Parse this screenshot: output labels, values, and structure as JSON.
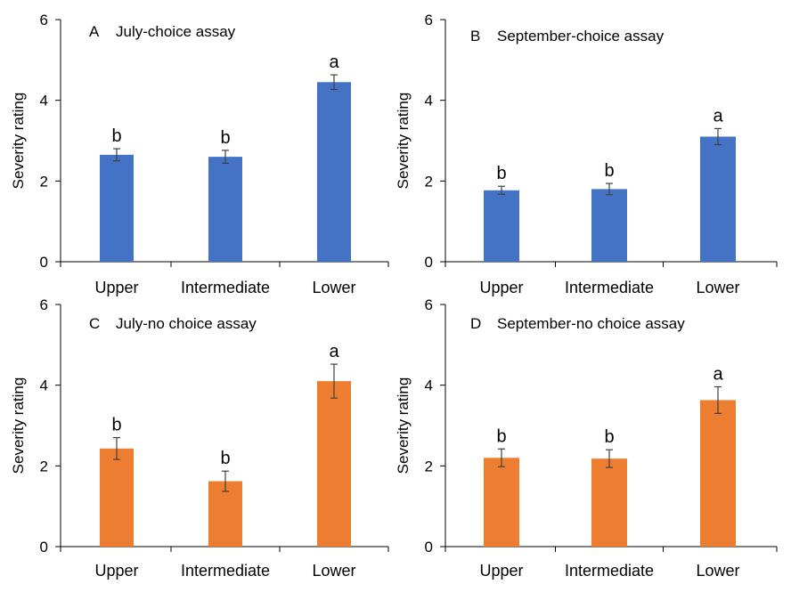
{
  "figure": {
    "panels": [
      {
        "letter": "A",
        "title": "July-choice assay"
      },
      {
        "letter": "B",
        "title": "September-choice assay"
      },
      {
        "letter": "C",
        "title": "July-no choice assay"
      },
      {
        "letter": "D",
        "title": "September-no choice assay"
      }
    ]
  },
  "chart_data": [
    {
      "type": "bar",
      "title": "A    July-choice assay",
      "xlabel": "",
      "ylabel": "Severity rating",
      "categories": [
        "Upper",
        "Intermediate",
        "Lower"
      ],
      "values": [
        2.65,
        2.6,
        4.45
      ],
      "error": [
        0.15,
        0.16,
        0.18
      ],
      "labels": [
        "b",
        "b",
        "a"
      ],
      "ylim": [
        0,
        6
      ],
      "yticks": [
        0,
        2,
        4,
        6
      ],
      "color": "#4472C4",
      "grid": false,
      "legend": "none"
    },
    {
      "type": "bar",
      "title": "B    September-choice assay",
      "xlabel": "",
      "ylabel": "Severity rating",
      "categories": [
        "Upper",
        "Intermediate",
        "Lower"
      ],
      "values": [
        1.77,
        1.8,
        3.1
      ],
      "error": [
        0.1,
        0.14,
        0.2
      ],
      "labels": [
        "b",
        "b",
        "a"
      ],
      "ylim": [
        0,
        6
      ],
      "yticks": [
        0,
        2,
        4,
        6
      ],
      "color": "#4472C4",
      "grid": false,
      "legend": "none"
    },
    {
      "type": "bar",
      "title": "C    July-no choice assay",
      "xlabel": "",
      "ylabel": "Severity rating",
      "categories": [
        "Upper",
        "Intermediate",
        "Lower"
      ],
      "values": [
        2.43,
        1.62,
        4.1
      ],
      "error": [
        0.27,
        0.25,
        0.42
      ],
      "labels": [
        "b",
        "b",
        "a"
      ],
      "ylim": [
        0,
        6
      ],
      "yticks": [
        0,
        2,
        4,
        6
      ],
      "color": "#ED7D31",
      "grid": false,
      "legend": "none"
    },
    {
      "type": "bar",
      "title": "D    September-no choice assay",
      "xlabel": "",
      "ylabel": "Severity rating",
      "categories": [
        "Upper",
        "Intermediate",
        "Lower"
      ],
      "values": [
        2.2,
        2.18,
        3.63
      ],
      "error": [
        0.22,
        0.22,
        0.33
      ],
      "labels": [
        "b",
        "b",
        "a"
      ],
      "ylim": [
        0,
        6
      ],
      "yticks": [
        0,
        2,
        4,
        6
      ],
      "color": "#ED7D31",
      "grid": false,
      "legend": "none"
    }
  ]
}
